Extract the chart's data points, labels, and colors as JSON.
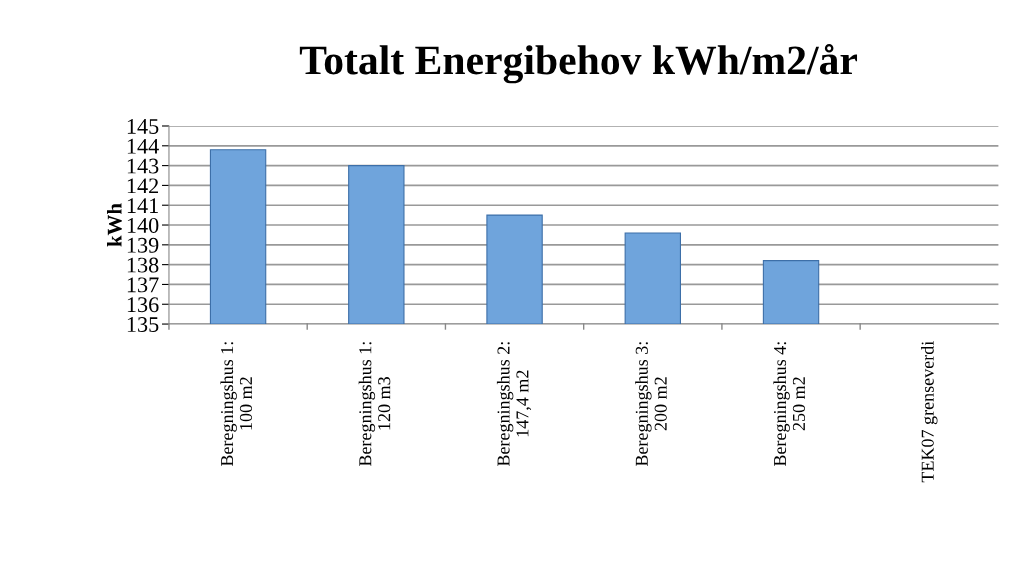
{
  "chart_data": {
    "type": "bar",
    "title": "Totalt Energibehov kWh/m2/år",
    "ylabel": "kWh",
    "categories": [
      "Beregningshus 1:\n100 m2",
      "Beregningshus 1:\n120 m3",
      "Beregningshus 2:\n147,4 m2",
      "Beregningshus 3:\n200 m2",
      "Beregningshus 4:\n250 m2",
      "TEK07 grenseverdi"
    ],
    "values": [
      143.8,
      143.0,
      140.5,
      139.6,
      138.2,
      null
    ],
    "color": "#6fa4dc",
    "ylim": [
      135,
      145
    ],
    "yticks": [
      135,
      136,
      137,
      138,
      139,
      140,
      141,
      142,
      143,
      144,
      145
    ],
    "grid": "y",
    "legend": false
  }
}
